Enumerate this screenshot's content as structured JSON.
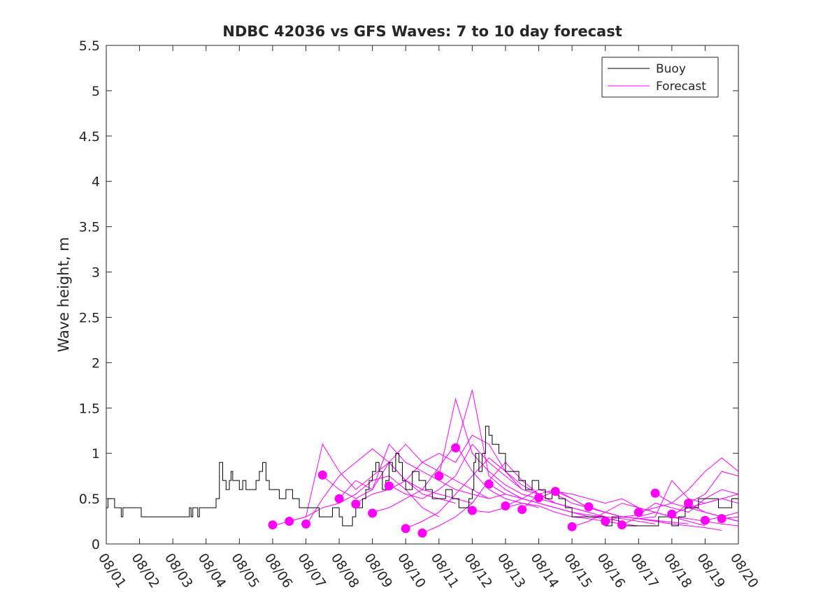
{
  "chart_data": {
    "type": "line",
    "title": "NDBC 42036 vs GFS Waves: 7 to 10 day forecast",
    "xlabel": "",
    "ylabel": "Wave height, m",
    "xlim": [
      0,
      19
    ],
    "ylim": [
      0,
      5.5
    ],
    "yticks": [
      0,
      0.5,
      1,
      1.5,
      2,
      2.5,
      3,
      3.5,
      4,
      4.5,
      5,
      5.5
    ],
    "ytick_labels": [
      "0",
      "0.5",
      "1",
      "1.5",
      "2",
      "2.5",
      "3",
      "3.5",
      "4",
      "4.5",
      "5",
      "5.5"
    ],
    "xticks": [
      0,
      1,
      2,
      3,
      4,
      5,
      6,
      7,
      8,
      9,
      10,
      11,
      12,
      13,
      14,
      15,
      16,
      17,
      18,
      19
    ],
    "xtick_labels": [
      "08/01",
      "08/02",
      "08/03",
      "08/04",
      "08/05",
      "08/06",
      "08/07",
      "08/08",
      "08/09",
      "08/10",
      "08/11",
      "08/12",
      "08/13",
      "08/14",
      "08/15",
      "08/16",
      "08/17",
      "08/18",
      "08/19",
      "08/20"
    ],
    "legend": {
      "position": "top-right",
      "entries": [
        {
          "label": "Buoy",
          "color": "#000000"
        },
        {
          "label": "Forecast",
          "color": "#ff00ff"
        }
      ]
    },
    "buoy": {
      "name": "Buoy",
      "color": "#000000",
      "x": [
        0,
        0.05,
        0.2,
        0.25,
        0.4,
        0.45,
        0.5,
        0.55,
        0.7,
        0.75,
        0.95,
        1.0,
        1.05,
        1.1,
        1.5,
        1.6,
        2.0,
        2.4,
        2.5,
        2.55,
        2.6,
        2.7,
        2.75,
        2.8,
        2.9,
        3.3,
        3.4,
        3.5,
        3.6,
        3.7,
        3.75,
        3.8,
        3.9,
        4.0,
        4.1,
        4.2,
        4.4,
        4.5,
        4.6,
        4.7,
        4.8,
        4.9,
        5.0,
        5.2,
        5.4,
        5.6,
        5.8,
        6.0,
        6.2,
        6.4,
        6.6,
        6.8,
        7.0,
        7.1,
        7.2,
        7.4,
        7.5,
        7.6,
        7.7,
        7.8,
        7.9,
        8.0,
        8.1,
        8.2,
        8.3,
        8.4,
        8.5,
        8.6,
        8.7,
        8.8,
        8.9,
        9.0,
        9.2,
        9.4,
        9.6,
        9.8,
        10.0,
        10.2,
        10.4,
        10.6,
        10.8,
        10.9,
        11.0,
        11.05,
        11.1,
        11.2,
        11.3,
        11.4,
        11.5,
        11.6,
        11.8,
        12.0,
        12.2,
        12.4,
        12.6,
        12.8,
        13.0,
        13.2,
        13.4,
        13.6,
        13.8,
        14.0,
        14.2,
        14.4,
        14.6,
        14.8,
        15.0,
        15.2,
        15.4,
        15.6,
        15.8,
        16.0,
        16.2,
        16.4,
        16.6,
        16.8,
        17.0,
        17.2,
        17.4,
        17.6,
        17.8,
        18.0,
        18.2,
        18.4,
        18.6,
        18.8,
        19.0
      ],
      "y": [
        0.4,
        0.5,
        0.5,
        0.4,
        0.4,
        0.3,
        0.4,
        0.4,
        0.4,
        0.4,
        0.4,
        0.4,
        0.3,
        0.3,
        0.3,
        0.3,
        0.3,
        0.3,
        0.4,
        0.3,
        0.4,
        0.4,
        0.3,
        0.4,
        0.4,
        0.5,
        0.9,
        0.7,
        0.6,
        0.7,
        0.8,
        0.7,
        0.7,
        0.6,
        0.7,
        0.6,
        0.6,
        0.7,
        0.8,
        0.9,
        0.7,
        0.6,
        0.6,
        0.5,
        0.6,
        0.5,
        0.4,
        0.4,
        0.4,
        0.3,
        0.3,
        0.4,
        0.3,
        0.2,
        0.2,
        0.3,
        0.4,
        0.4,
        0.5,
        0.6,
        0.7,
        0.8,
        0.9,
        0.8,
        0.6,
        0.7,
        0.9,
        0.8,
        1.0,
        0.9,
        0.7,
        0.6,
        0.8,
        0.7,
        0.6,
        0.5,
        0.5,
        0.6,
        0.5,
        0.4,
        0.4,
        0.5,
        0.6,
        0.9,
        1.0,
        0.8,
        1.0,
        1.3,
        1.2,
        1.1,
        1.0,
        0.8,
        0.8,
        0.7,
        0.6,
        0.7,
        0.6,
        0.5,
        0.6,
        0.5,
        0.4,
        0.3,
        0.3,
        0.3,
        0.3,
        0.3,
        0.2,
        0.3,
        0.2,
        0.2,
        0.2,
        0.2,
        0.2,
        0.2,
        0.3,
        0.3,
        0.2,
        0.3,
        0.4,
        0.4,
        0.5,
        0.5,
        0.5,
        0.4,
        0.4,
        0.5,
        0.5
      ]
    },
    "forecast_series": [
      {
        "name": "Forecast",
        "color": "#ff00ff",
        "x": [
          5.0,
          5.5,
          6.0,
          6.5,
          7.0,
          7.5,
          8.0,
          8.5,
          9.0,
          9.5,
          10.0
        ],
        "y": [
          0.2,
          0.25,
          0.3,
          0.4,
          0.45,
          0.55,
          0.7,
          0.75,
          0.6,
          0.4,
          0.3
        ]
      },
      {
        "name": "Forecast",
        "color": "#ff00ff",
        "x": [
          5.5,
          6.0,
          6.5,
          7.0,
          7.5,
          8.0,
          8.5,
          9.0,
          9.5,
          10.0,
          10.5
        ],
        "y": [
          0.25,
          0.3,
          1.1,
          0.8,
          0.6,
          0.75,
          0.9,
          0.7,
          0.55,
          0.5,
          0.45
        ]
      },
      {
        "name": "Forecast",
        "color": "#ff00ff",
        "x": [
          6.0,
          6.5,
          7.0,
          7.5,
          8.0,
          8.5,
          9.0,
          9.5,
          10.0,
          10.5,
          11.0
        ],
        "y": [
          0.2,
          0.5,
          0.75,
          0.9,
          1.05,
          0.9,
          0.7,
          0.6,
          0.55,
          0.5,
          0.45
        ]
      },
      {
        "name": "Forecast",
        "color": "#ff00ff",
        "x": [
          6.5,
          7.0,
          7.5,
          8.0,
          8.5,
          9.0,
          9.5,
          10.0,
          10.5,
          11.0,
          11.5
        ],
        "y": [
          0.75,
          0.6,
          0.5,
          0.6,
          1.1,
          0.9,
          0.8,
          0.7,
          0.6,
          0.55,
          0.5
        ]
      },
      {
        "name": "Forecast",
        "color": "#ff00ff",
        "x": [
          7.0,
          7.5,
          8.0,
          8.5,
          9.0,
          9.5,
          10.0,
          10.5,
          11.0,
          11.5,
          12.0
        ],
        "y": [
          0.5,
          0.7,
          0.6,
          0.9,
          1.1,
          0.9,
          0.8,
          0.7,
          0.6,
          0.5,
          0.55
        ]
      },
      {
        "name": "Forecast",
        "color": "#ff00ff",
        "x": [
          7.5,
          8.0,
          8.5,
          9.0,
          9.5,
          10.0,
          10.5,
          11.0,
          11.5,
          12.0,
          12.5
        ],
        "y": [
          0.45,
          0.55,
          0.6,
          0.7,
          0.9,
          1.0,
          0.9,
          1.2,
          1.1,
          0.8,
          0.6
        ]
      },
      {
        "name": "Forecast",
        "color": "#ff00ff",
        "x": [
          8.0,
          8.5,
          9.0,
          9.5,
          10.0,
          10.5,
          11.0,
          11.5,
          12.0,
          12.5,
          13.0
        ],
        "y": [
          0.35,
          0.4,
          0.5,
          0.6,
          0.85,
          1.1,
          0.8,
          0.6,
          0.5,
          0.45,
          0.4
        ]
      },
      {
        "name": "Forecast",
        "color": "#ff00ff",
        "x": [
          8.5,
          9.0,
          9.5,
          10.0,
          10.5,
          11.0,
          11.5,
          12.0,
          12.5,
          13.0,
          13.5
        ],
        "y": [
          0.65,
          0.55,
          0.5,
          0.6,
          0.75,
          1.1,
          0.9,
          0.75,
          0.6,
          0.55,
          0.45
        ]
      },
      {
        "name": "Forecast",
        "color": "#ff00ff",
        "x": [
          9.0,
          9.5,
          10.0,
          10.5,
          11.0,
          11.5,
          12.0,
          12.5,
          13.0,
          13.5,
          14.0
        ],
        "y": [
          0.17,
          0.25,
          0.35,
          0.55,
          0.75,
          0.95,
          0.8,
          0.65,
          0.55,
          0.45,
          0.4
        ]
      },
      {
        "name": "Forecast",
        "color": "#ff00ff",
        "x": [
          9.5,
          10.0,
          10.5,
          11.0,
          11.5,
          12.0,
          12.5,
          13.0,
          13.5,
          14.0,
          14.5
        ],
        "y": [
          0.12,
          0.2,
          0.3,
          0.45,
          0.7,
          0.9,
          0.7,
          0.55,
          0.45,
          0.4,
          0.35
        ]
      },
      {
        "name": "Forecast",
        "color": "#ff00ff",
        "x": [
          10.0,
          10.5,
          11.0,
          11.5,
          12.0,
          12.5,
          13.0,
          13.5,
          14.0,
          14.5,
          15.0
        ],
        "y": [
          0.75,
          1.6,
          1.0,
          0.8,
          0.65,
          0.55,
          0.5,
          0.45,
          0.4,
          0.35,
          0.3
        ]
      },
      {
        "name": "Forecast",
        "color": "#ff00ff",
        "x": [
          10.5,
          11.0,
          11.5,
          12.0,
          12.5,
          13.0,
          13.5,
          14.0,
          14.5,
          15.0,
          15.5
        ],
        "y": [
          1.05,
          1.7,
          0.75,
          0.6,
          0.5,
          0.45,
          0.4,
          0.35,
          0.3,
          0.28,
          0.25
        ]
      },
      {
        "name": "Forecast",
        "color": "#ff00ff",
        "x": [
          11.0,
          11.5,
          12.0,
          12.5,
          13.0,
          13.5,
          14.0,
          14.5,
          15.0,
          15.5,
          16.0
        ],
        "y": [
          0.37,
          0.35,
          0.4,
          0.45,
          0.42,
          0.35,
          0.3,
          0.28,
          0.25,
          0.22,
          0.2
        ]
      },
      {
        "name": "Forecast",
        "color": "#ff00ff",
        "x": [
          11.5,
          12.0,
          12.5,
          13.0,
          13.5,
          14.0,
          14.5,
          15.0,
          15.5,
          16.0,
          16.5
        ],
        "y": [
          0.66,
          0.55,
          0.5,
          0.45,
          0.4,
          0.35,
          0.32,
          0.3,
          0.28,
          0.25,
          0.22
        ]
      },
      {
        "name": "Forecast",
        "color": "#ff00ff",
        "x": [
          12.0,
          12.5,
          13.0,
          13.5,
          14.0,
          14.5,
          15.0,
          15.5,
          16.0,
          16.5,
          17.0
        ],
        "y": [
          0.42,
          0.5,
          0.6,
          0.55,
          0.45,
          0.4,
          0.35,
          0.3,
          0.28,
          0.25,
          0.22
        ]
      },
      {
        "name": "Forecast",
        "color": "#ff00ff",
        "x": [
          12.5,
          13.0,
          13.5,
          14.0,
          14.5,
          15.0,
          15.5,
          16.0,
          16.5,
          17.0,
          17.5
        ],
        "y": [
          0.38,
          0.55,
          0.6,
          0.5,
          0.4,
          0.35,
          0.3,
          0.28,
          0.26,
          0.24,
          0.22
        ]
      },
      {
        "name": "Forecast",
        "color": "#ff00ff",
        "x": [
          13.0,
          13.5,
          14.0,
          14.5,
          15.0,
          15.5,
          16.0,
          16.5,
          17.0,
          17.5,
          18.0
        ],
        "y": [
          0.51,
          0.58,
          0.55,
          0.5,
          0.45,
          0.5,
          0.4,
          0.35,
          0.3,
          0.25,
          0.2
        ]
      },
      {
        "name": "Forecast",
        "color": "#ff00ff",
        "x": [
          13.5,
          14.0,
          14.5,
          15.0,
          15.5,
          16.0,
          16.5,
          17.0,
          17.5,
          18.0,
          18.5
        ],
        "y": [
          0.58,
          0.5,
          0.4,
          0.35,
          0.3,
          0.28,
          0.25,
          0.22,
          0.2,
          0.18,
          0.15
        ]
      },
      {
        "name": "Forecast",
        "color": "#ff00ff",
        "x": [
          14.0,
          14.5,
          15.0,
          15.5,
          16.0,
          16.5,
          17.0,
          17.5,
          18.0,
          18.5,
          19.0
        ],
        "y": [
          0.19,
          0.25,
          0.35,
          0.45,
          0.4,
          0.35,
          0.3,
          0.28,
          0.25,
          0.22,
          0.2
        ]
      },
      {
        "name": "Forecast",
        "color": "#ff00ff",
        "x": [
          14.5,
          15.0,
          15.5,
          16.0,
          16.5,
          17.0,
          17.5,
          18.0,
          18.5,
          19.0
        ],
        "y": [
          0.41,
          0.35,
          0.3,
          0.28,
          0.3,
          0.7,
          0.5,
          0.45,
          0.5,
          0.55
        ]
      },
      {
        "name": "Forecast",
        "color": "#ff00ff",
        "x": [
          15.0,
          15.5,
          16.0,
          16.5,
          17.0,
          17.5,
          18.0,
          18.5,
          19.0
        ],
        "y": [
          0.25,
          0.3,
          0.32,
          0.45,
          0.4,
          0.35,
          0.5,
          0.6,
          0.55
        ]
      },
      {
        "name": "Forecast",
        "color": "#ff00ff",
        "x": [
          15.5,
          16.0,
          16.5,
          17.0,
          17.5,
          18.0,
          18.5,
          19.0
        ],
        "y": [
          0.21,
          0.3,
          0.35,
          0.3,
          0.45,
          0.55,
          0.8,
          0.75
        ]
      },
      {
        "name": "Forecast",
        "color": "#ff00ff",
        "x": [
          16.0,
          16.5,
          17.0,
          17.5,
          18.0,
          18.5,
          19.0
        ],
        "y": [
          0.35,
          0.4,
          0.45,
          0.4,
          0.35,
          0.3,
          0.25
        ]
      },
      {
        "name": "Forecast",
        "color": "#ff00ff",
        "x": [
          16.5,
          17.0,
          17.5,
          18.0,
          18.5,
          19.0
        ],
        "y": [
          0.56,
          0.45,
          0.6,
          0.8,
          0.95,
          0.8
        ]
      },
      {
        "name": "Forecast",
        "color": "#ff00ff",
        "x": [
          17.0,
          17.5,
          18.0,
          18.5,
          19.0
        ],
        "y": [
          0.33,
          0.4,
          0.45,
          0.5,
          0.45
        ]
      },
      {
        "name": "Forecast",
        "color": "#ff00ff",
        "x": [
          17.5,
          18.0,
          18.5,
          19.0
        ],
        "y": [
          0.45,
          0.35,
          0.3,
          0.25
        ]
      },
      {
        "name": "Forecast",
        "color": "#ff00ff",
        "x": [
          18.0,
          18.5,
          19.0
        ],
        "y": [
          0.26,
          0.3,
          0.35
        ]
      },
      {
        "name": "Forecast",
        "color": "#ff00ff",
        "x": [
          18.5,
          19.0
        ],
        "y": [
          0.28,
          0.3
        ]
      }
    ],
    "forecast_markers": {
      "color": "#ff00ff",
      "x": [
        5.0,
        5.5,
        6.0,
        6.5,
        7.0,
        7.5,
        8.0,
        8.5,
        9.0,
        9.5,
        10.0,
        10.5,
        11.0,
        11.5,
        12.0,
        12.5,
        13.0,
        13.5,
        14.0,
        14.5,
        15.0,
        15.5,
        16.0,
        16.5,
        17.0,
        17.5,
        18.0,
        18.5
      ],
      "y": [
        0.21,
        0.25,
        0.22,
        0.76,
        0.5,
        0.44,
        0.34,
        0.64,
        0.17,
        0.12,
        0.75,
        1.06,
        0.37,
        0.66,
        0.42,
        0.38,
        0.51,
        0.58,
        0.19,
        0.41,
        0.25,
        0.21,
        0.35,
        0.56,
        0.33,
        0.45,
        0.26,
        0.28
      ]
    }
  }
}
